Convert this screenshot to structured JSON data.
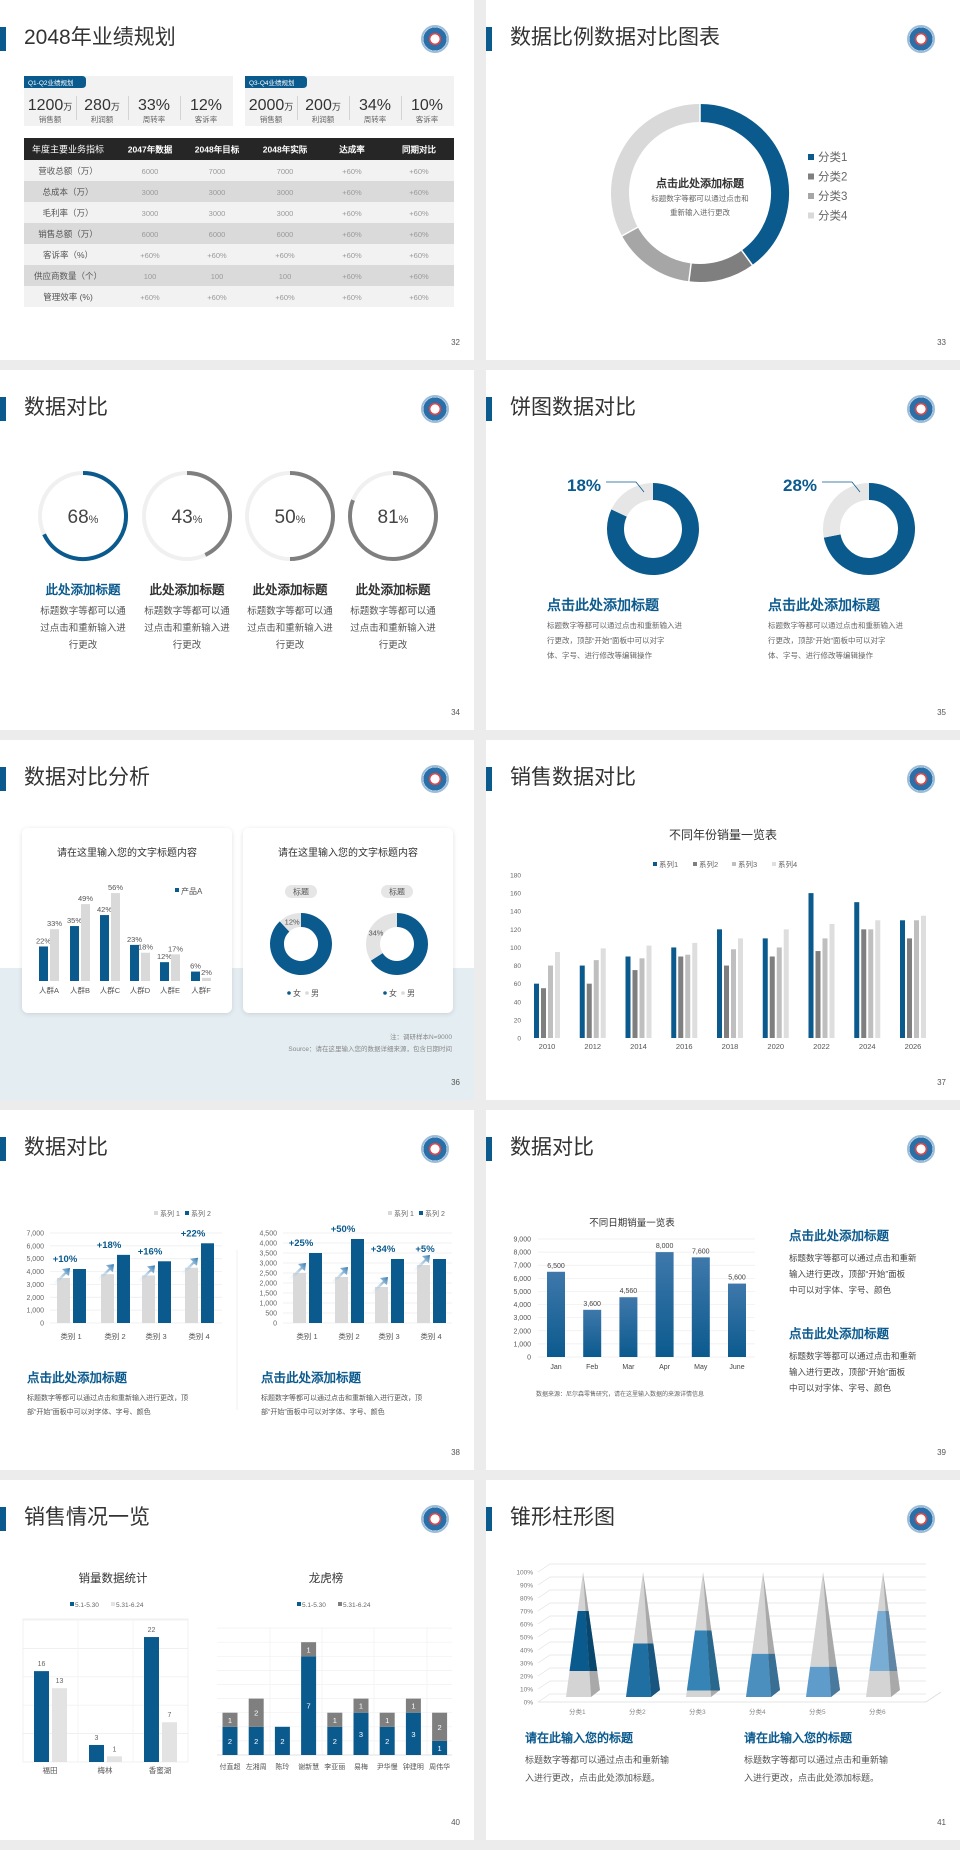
{
  "colors": {
    "accent": "#0b5a8e",
    "gray": "#7f7f7f",
    "mid_gray": "#a6a6a6",
    "light_gray": "#d9d9d9",
    "lighter_gray": "#e6e6e6"
  },
  "s32": {
    "title": "2048年业绩规划",
    "page": "32",
    "groups": [
      {
        "tag": "Q1-Q2业绩规划",
        "stats": [
          {
            "value": "1200",
            "unit": "万",
            "label": "销售额"
          },
          {
            "value": "280",
            "unit": "万",
            "label": "利润额"
          },
          {
            "value": "33%",
            "unit": "",
            "label": "周转率"
          },
          {
            "value": "12%",
            "unit": "",
            "label": "客诉率"
          }
        ]
      },
      {
        "tag": "Q3-Q4业绩规划",
        "stats": [
          {
            "value": "2000",
            "unit": "万",
            "label": "销售额"
          },
          {
            "value": "200",
            "unit": "万",
            "label": "利润额"
          },
          {
            "value": "34%",
            "unit": "",
            "label": "周转率"
          },
          {
            "value": "10%",
            "unit": "",
            "label": "客诉率"
          }
        ]
      }
    ],
    "table": {
      "headers": [
        "年度主要业务指标",
        "2047年数据",
        "2048年目标",
        "2048年实际",
        "达成率",
        "同期对比"
      ],
      "rows": [
        [
          "营收总额（万）",
          "6000",
          "7000",
          "7000",
          "+60%",
          "+60%"
        ],
        [
          "总成本（万）",
          "3000",
          "3000",
          "3000",
          "+60%",
          "+60%"
        ],
        [
          "毛利率（万）",
          "3000",
          "3000",
          "3000",
          "+60%",
          "+60%"
        ],
        [
          "销售总额（万）",
          "6000",
          "6000",
          "6000",
          "+60%",
          "+60%"
        ],
        [
          "客诉率（%）",
          "+60%",
          "+60%",
          "+60%",
          "+60%",
          "+60%"
        ],
        [
          "供应商数量（个）",
          "100",
          "100",
          "100",
          "+60%",
          "+60%"
        ],
        [
          "管理效率 (%)",
          "+60%",
          "+60%",
          "+60%",
          "+60%",
          "+60%"
        ]
      ]
    }
  },
  "s33": {
    "title": "数据比例数据对比图表",
    "page": "33",
    "center_title": "点击此处添加标题",
    "center_lines": [
      "标题数字等都可以通过点击和",
      "重新输入进行更改"
    ],
    "chart_data": {
      "type": "pie",
      "labels": [
        "分类1",
        "分类2",
        "分类3",
        "分类4"
      ],
      "values": [
        40,
        12,
        15,
        33
      ],
      "colors": [
        "#0b5a8e",
        "#7f7f7f",
        "#a6a6a6",
        "#d9d9d9"
      ],
      "legend": "right"
    }
  },
  "s34": {
    "title": "数据对比",
    "page": "34",
    "items": [
      {
        "value": 68,
        "unit": "%",
        "color": "#0b5a8e",
        "title": "此处添加标题",
        "lines": [
          "标题数字等都可以通",
          "过点击和重新输入进",
          "行更改"
        ]
      },
      {
        "value": 43,
        "unit": "%",
        "color": "#7f7f7f",
        "title": "此处添加标题",
        "lines": [
          "标题数字等都可以通",
          "过点击和重新输入进",
          "行更改"
        ]
      },
      {
        "value": 50,
        "unit": "%",
        "color": "#7f7f7f",
        "title": "此处添加标题",
        "lines": [
          "标题数字等都可以通",
          "过点击和重新输入进",
          "行更改"
        ]
      },
      {
        "value": 81,
        "unit": "%",
        "color": "#7f7f7f",
        "title": "此处添加标题",
        "lines": [
          "标题数字等都可以通",
          "过点击和重新输入进",
          "行更改"
        ]
      }
    ]
  },
  "s35": {
    "title": "饼图数据对比",
    "page": "35",
    "items": [
      {
        "percent": 18,
        "label": "18%",
        "title": "点击此处添加标题",
        "lines": [
          "标题数字等都可以通过点击和重新输入进",
          "行更改，顶部“开始”面板中可以对字",
          "体、字号、进行修改等编辑操作"
        ]
      },
      {
        "percent": 28,
        "label": "28%",
        "title": "点击此处添加标题",
        "lines": [
          "标题数字等都可以通过点击和重新输入进",
          "行更改，顶部“开始”面板中可以对字",
          "体、字号、进行修改等编辑操作"
        ]
      }
    ]
  },
  "s36": {
    "title": "数据对比分析",
    "page": "36",
    "left_card": {
      "title": "请在这里输入您的文字标题内容"
    },
    "right_card": {
      "title": "请在这里输入您的文字标题内容"
    },
    "chart_data": [
      {
        "type": "bar",
        "categories": [
          "人群A",
          "人群B",
          "人群C",
          "人群D",
          "人群E",
          "人群F"
        ],
        "series": [
          {
            "name": "产品A",
            "values": [
              22,
              35,
              42,
              23,
              12,
              6
            ],
            "labels": [
              "22%",
              "35%",
              "42%",
              "23%",
              "12%",
              "6%"
            ]
          },
          {
            "values": [
              33,
              49,
              56,
              18,
              17,
              2
            ],
            "labels": [
              "33%",
              "49%",
              "56%",
              "18%",
              "17%",
              "2%"
            ]
          }
        ],
        "legend": "top-right"
      },
      {
        "type": "pie",
        "title": "标题",
        "labels": [
          "女",
          "男"
        ],
        "values": [
          88,
          12
        ],
        "data_label": "12%"
      },
      {
        "type": "pie",
        "title": "标题",
        "labels": [
          "女",
          "男"
        ],
        "values": [
          66,
          34
        ],
        "data_label": "34%"
      }
    ],
    "note": "注：调研样本N=9000",
    "source": "Source：请在这里输入您的数据详细来源，包含日期时间"
  },
  "s37": {
    "title": "销售数据对比",
    "page": "37",
    "chart_data": {
      "type": "bar",
      "title": "不同年份销量一览表",
      "categories": [
        "2010",
        "2012",
        "2014",
        "2016",
        "2018",
        "2020",
        "2022",
        "2024",
        "2026"
      ],
      "series": [
        {
          "name": "系列1",
          "values": [
            60,
            80,
            90,
            100,
            120,
            110,
            160,
            150,
            130
          ]
        },
        {
          "name": "系列2",
          "values": [
            55,
            60,
            75,
            90,
            80,
            90,
            96,
            120,
            110
          ]
        },
        {
          "name": "系列3",
          "values": [
            80,
            86,
            88,
            92,
            98,
            100,
            110,
            120,
            130
          ]
        },
        {
          "name": "系列4",
          "values": [
            95,
            99,
            102,
            105,
            110,
            120,
            126,
            130,
            135
          ]
        }
      ],
      "colors": [
        "#0b5a8e",
        "#7f7f7f",
        "#bfbfbf",
        "#dedede"
      ],
      "ylim": [
        0,
        180
      ],
      "yticks": [
        "0",
        "20",
        "40",
        "60",
        "80",
        "100",
        "120",
        "140",
        "160",
        "180"
      ],
      "legend": "top",
      "grid": false
    }
  },
  "s38": {
    "title": "数据对比",
    "page": "38",
    "chart_data": [
      {
        "type": "bar",
        "categories": [
          "类别 1",
          "类别 2",
          "类别 3",
          "类别 4"
        ],
        "series": [
          {
            "name": "系列 1",
            "values": [
              3500,
              3800,
              3700,
              4300
            ]
          },
          {
            "name": "系列 2",
            "values": [
              4200,
              5300,
              4800,
              6200
            ]
          }
        ],
        "growth_labels": [
          "+10%",
          "+18%",
          "+16%",
          "+22%"
        ],
        "ylim": [
          0,
          7000
        ],
        "yticks": [
          "0",
          "1,000",
          "2,000",
          "3,000",
          "4,000",
          "5,000",
          "6,000",
          "7,000"
        ],
        "legend": "top-right",
        "grid": true
      },
      {
        "type": "bar",
        "categories": [
          "类别 1",
          "类别 2",
          "类别 3",
          "类别 4"
        ],
        "series": [
          {
            "name": "系列 1",
            "values": [
              2500,
              2300,
              1800,
              2900
            ]
          },
          {
            "name": "系列 2",
            "values": [
              3500,
              4200,
              3200,
              3200
            ]
          }
        ],
        "growth_labels": [
          "+25%",
          "+50%",
          "+34%",
          "+5%"
        ],
        "ylim": [
          0,
          4500
        ],
        "yticks": [
          "0",
          "500",
          "1,000",
          "1,500",
          "2,000",
          "2,500",
          "3,000",
          "3,500",
          "4,000",
          "4,500"
        ],
        "legend": "top-right",
        "grid": true
      }
    ],
    "blocks": [
      {
        "title": "点击此处添加标题",
        "lines": [
          "标题数字等都可以通过点击和重新输入进行更改，顶",
          "部“开始”面板中可以对字体、字号、颜色"
        ]
      },
      {
        "title": "点击此处添加标题",
        "lines": [
          "标题数字等都可以通过点击和重新输入进行更改，顶",
          "部“开始”面板中可以对字体、字号、颜色"
        ]
      }
    ]
  },
  "s39": {
    "title": "数据对比",
    "page": "39",
    "chart_data": {
      "type": "bar",
      "title": "不同日期销量一览表",
      "categories": [
        "Jan",
        "Feb",
        "Mar",
        "Apr",
        "May",
        "June"
      ],
      "values": [
        6500,
        3600,
        4560,
        8000,
        7600,
        5600
      ],
      "data_labels": [
        "6,500",
        "3,600",
        "4,560",
        "8,000",
        "7,600",
        "5,600"
      ],
      "ylim": [
        0,
        9000
      ],
      "yticks": [
        "0",
        "1,000",
        "2,000",
        "3,000",
        "4,000",
        "5,000",
        "6,000",
        "7,000",
        "8,000",
        "9,000"
      ],
      "grid": true
    },
    "source": "数据来源：尼尔森零售研究，请在这里输入数据的来源详情信息",
    "blocks": [
      {
        "title": "点击此处添加标题",
        "lines": [
          "标题数字等都可以通过点击和重新",
          "输入进行更改，顶部“开始”面板",
          "中可以对字体、字号、颜色"
        ]
      },
      {
        "title": "点击此处添加标题",
        "lines": [
          "标题数字等都可以通过点击和重新",
          "输入进行更改，顶部“开始”面板",
          "中可以对字体、字号、颜色"
        ]
      }
    ]
  },
  "s40": {
    "title": "销售情况一览",
    "page": "40",
    "chart_data": [
      {
        "type": "bar",
        "title": "销量数据统计",
        "categories": [
          "福田",
          "梅林",
          "香蜜湖"
        ],
        "series": [
          {
            "name": "5.1-5.30",
            "values": [
              16,
              3,
              22
            ]
          },
          {
            "name": "5.31-6.24",
            "values": [
              13,
              1,
              7
            ]
          }
        ],
        "colors": [
          "#0b5a8e",
          "#e3e3e3"
        ],
        "legend": "top"
      },
      {
        "type": "bar",
        "stacked": true,
        "title": "龙虎榜",
        "categories": [
          "付直超",
          "左湘周",
          "陈玲",
          "谢新慧",
          "李亚丽",
          "易梅",
          "尹华慢",
          "钟建明",
          "周伟华"
        ],
        "series": [
          {
            "name": "5.1-5.30",
            "values": [
              2,
              2,
              2,
              7,
              2,
              3,
              2,
              3,
              1
            ]
          },
          {
            "name": "5.31-6.24",
            "values": [
              1,
              2,
              0,
              1,
              1,
              1,
              1,
              1,
              2
            ]
          }
        ],
        "colors": [
          "#0b5a8e",
          "#7f7f7f"
        ],
        "legend": "top"
      }
    ]
  },
  "s41": {
    "title": "锥形柱形图",
    "page": "41",
    "chart_data": {
      "type": "bar",
      "style": "3d-cone",
      "categories": [
        "分类1",
        "分类2",
        "分类3",
        "分类4",
        "分类5",
        "分类6"
      ],
      "values": [
        70,
        45,
        55,
        37,
        27,
        70
      ],
      "ylim": [
        0,
        100
      ],
      "yticks": [
        "0%",
        "10%",
        "20%",
        "30%",
        "40%",
        "50%",
        "60%",
        "70%",
        "80%",
        "90%",
        "100%"
      ],
      "colors": [
        "#0b5a8e",
        "#1f6fa3",
        "#3584b5",
        "#4b8fbf",
        "#5f9ccb",
        "#7aadd4"
      ],
      "grid": true
    },
    "blocks": [
      {
        "title": "请在此输入您的标题",
        "lines": [
          "标题数字等都可以通过点击和重新输",
          "入进行更改，点击此处添加标题。"
        ]
      },
      {
        "title": "请在此输入您的标题",
        "lines": [
          "标题数字等都可以通过点击和重新输",
          "入进行更改，点击此处添加标题。"
        ]
      }
    ]
  }
}
